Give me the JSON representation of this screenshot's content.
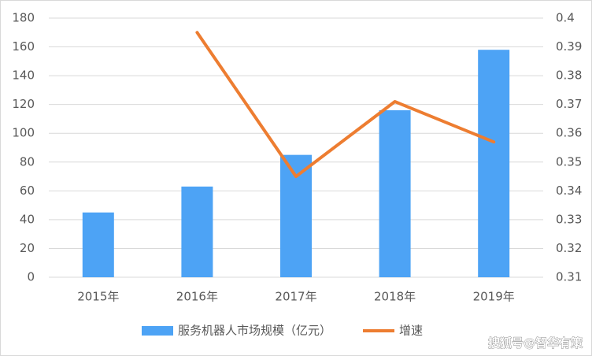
{
  "chart_data": {
    "type": "bar-line",
    "categories": [
      "2015年",
      "2016年",
      "2017年",
      "2018年",
      "2019年"
    ],
    "series": [
      {
        "name": "服务机器人市场规模（亿元）",
        "type": "bar",
        "color": "#4da3f5",
        "values": [
          45,
          63,
          85,
          116,
          158
        ]
      },
      {
        "name": "增速",
        "type": "line",
        "axis": "y2",
        "color": "#ed7d31",
        "values": [
          null,
          0.395,
          0.345,
          0.371,
          0.357
        ]
      }
    ],
    "ylim": [
      0,
      180
    ],
    "yticks": [
      0,
      20,
      40,
      60,
      80,
      100,
      120,
      140,
      160,
      180
    ],
    "y2lim": [
      0.31,
      0.4
    ],
    "y2ticks": [
      0.31,
      0.32,
      0.33,
      0.34,
      0.35,
      0.36,
      0.37,
      0.38,
      0.39,
      0.4
    ],
    "grid": true,
    "legend": "bottom",
    "watermark": "搜狐号@智华有策"
  }
}
